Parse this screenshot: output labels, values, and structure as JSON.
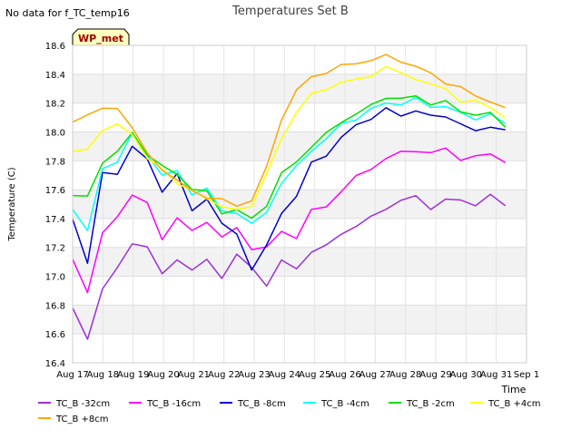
{
  "chart_data": {
    "type": "line",
    "title": "Temperatures Set B",
    "note": "No data for f_TC_temp16",
    "badge": "WP_met",
    "xlabel": "Time",
    "ylabel": "Temperature (C)",
    "x_ticks": [
      "Aug 17",
      "Aug 18",
      "Aug 19",
      "Aug 20",
      "Aug 21",
      "Aug 22",
      "Aug 23",
      "Aug 24",
      "Aug 25",
      "Aug 26",
      "Aug 27",
      "Aug 28",
      "Aug 29",
      "Aug 30",
      "Aug 31",
      "Sep 1"
    ],
    "xlim": [
      0,
      15
    ],
    "ylim": [
      16.4,
      18.6
    ],
    "y_ticks": [
      "16.4",
      "16.6",
      "16.8",
      "17.0",
      "17.2",
      "17.4",
      "17.6",
      "17.8",
      "18.0",
      "18.2",
      "18.4",
      "18.6"
    ],
    "grid": "alternating horizontal bands",
    "legend_position": "bottom",
    "x_start_label": "Aug 17",
    "series": [
      {
        "name": "TC_B -32cm",
        "color": "#9b30d9",
        "values": [
          16.78,
          16.55,
          16.93,
          17.05,
          17.22,
          17.22,
          17.0,
          17.12,
          17.05,
          17.1,
          17.0,
          17.15,
          17.05,
          16.95,
          17.1,
          17.05,
          17.18,
          17.2,
          17.3,
          17.35,
          17.4,
          17.48,
          17.52,
          17.55,
          17.48,
          17.52,
          17.53,
          17.5,
          17.55,
          17.5
        ]
      },
      {
        "name": "TC_B -16cm",
        "color": "#ff00ff",
        "values": [
          17.1,
          16.9,
          17.3,
          17.4,
          17.58,
          17.5,
          17.25,
          17.42,
          17.3,
          17.38,
          17.28,
          17.32,
          17.2,
          17.2,
          17.3,
          17.28,
          17.45,
          17.48,
          17.6,
          17.68,
          17.75,
          17.82,
          17.85,
          17.88,
          17.85,
          17.88,
          17.82,
          17.82,
          17.85,
          17.8
        ]
      },
      {
        "name": "TC_B -8cm",
        "color": "#0000cc",
        "values": [
          17.4,
          17.1,
          17.7,
          17.72,
          17.9,
          17.8,
          17.6,
          17.7,
          17.45,
          17.55,
          17.35,
          17.3,
          17.05,
          17.2,
          17.45,
          17.55,
          17.78,
          17.85,
          17.95,
          18.05,
          18.1,
          18.15,
          18.12,
          18.15,
          18.1,
          18.12,
          18.05,
          18.0,
          18.05,
          18.0
        ]
      },
      {
        "name": "TC_B -4cm",
        "color": "#00ffff",
        "values": [
          17.48,
          17.3,
          17.75,
          17.8,
          17.98,
          17.85,
          17.7,
          17.72,
          17.58,
          17.6,
          17.45,
          17.45,
          17.35,
          17.45,
          17.65,
          17.75,
          17.88,
          17.95,
          18.05,
          18.1,
          18.15,
          18.2,
          18.2,
          18.22,
          18.18,
          18.18,
          18.12,
          18.1,
          18.12,
          18.05
        ]
      },
      {
        "name": "TC_B -2cm",
        "color": "#00e000",
        "values": [
          17.55,
          17.55,
          17.8,
          17.85,
          18.0,
          17.85,
          17.75,
          17.72,
          17.6,
          17.58,
          17.45,
          17.45,
          17.4,
          17.5,
          17.7,
          17.8,
          17.9,
          17.98,
          18.08,
          18.12,
          18.18,
          18.25,
          18.22,
          18.25,
          18.2,
          18.2,
          18.15,
          18.12,
          18.12,
          18.05
        ]
      },
      {
        "name": "TC_B +4cm",
        "color": "#ffff00",
        "values": [
          17.85,
          17.9,
          18.0,
          18.05,
          18.0,
          17.8,
          17.75,
          17.65,
          17.58,
          17.55,
          17.48,
          17.45,
          17.5,
          17.7,
          17.95,
          18.15,
          18.25,
          18.3,
          18.35,
          18.35,
          18.4,
          18.45,
          18.4,
          18.38,
          18.32,
          18.3,
          18.22,
          18.2,
          18.18,
          18.1
        ]
      },
      {
        "name": "TC_B +8cm",
        "color": "#ffa500",
        "values": [
          18.08,
          18.12,
          18.15,
          18.18,
          18.02,
          17.85,
          17.75,
          17.65,
          17.6,
          17.55,
          17.52,
          17.5,
          17.52,
          17.75,
          18.1,
          18.28,
          18.38,
          18.42,
          18.45,
          18.48,
          18.5,
          18.52,
          18.5,
          18.45,
          18.4,
          18.35,
          18.3,
          18.25,
          18.22,
          18.15
        ]
      }
    ]
  }
}
